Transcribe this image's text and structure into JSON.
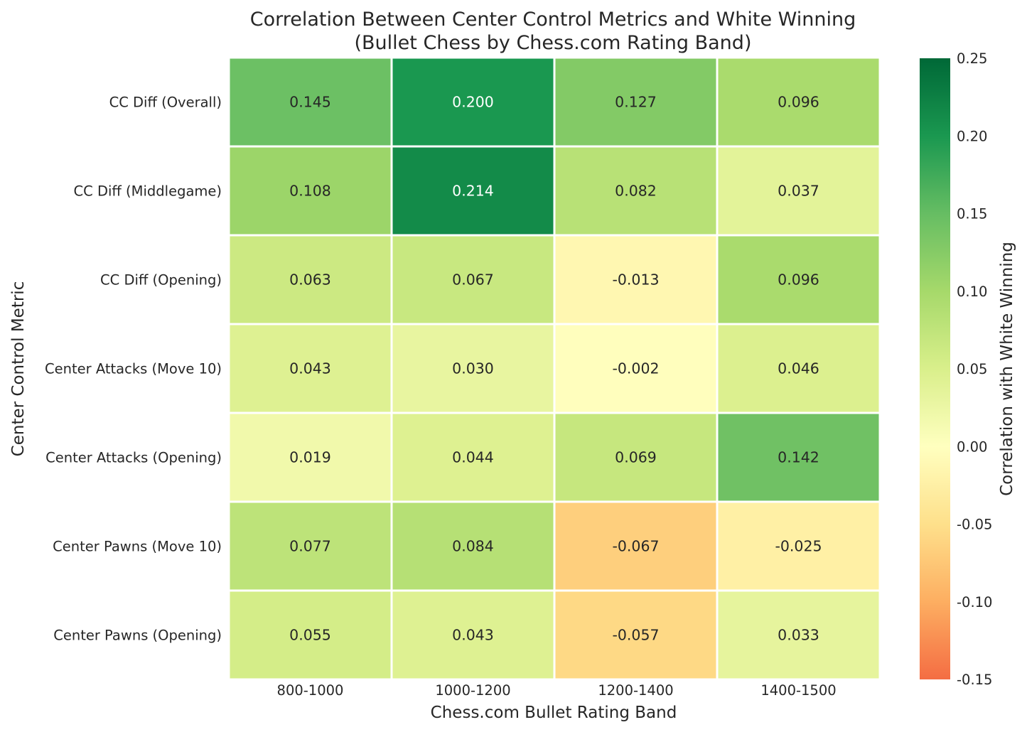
{
  "chart_data": {
    "type": "heatmap",
    "title": "Correlation Between Center Control Metrics and White Winning",
    "subtitle": "(Bullet Chess by Chess.com Rating Band)",
    "xlabel": "Chess.com Bullet Rating Band",
    "ylabel": "Center Control Metric",
    "colorbar_label": "Correlation with White Winning",
    "colormap": "RdYlGn",
    "vmin": -0.15,
    "vmax": 0.25,
    "colorbar_ticks": [
      "0.25",
      "0.20",
      "0.15",
      "0.10",
      "0.05",
      "0.00",
      "-0.05",
      "-0.10",
      "-0.15"
    ],
    "columns": [
      "800-1000",
      "1000-1200",
      "1200-1400",
      "1400-1500"
    ],
    "rows": [
      "CC Diff (Overall)",
      "CC Diff (Middlegame)",
      "CC Diff (Opening)",
      "Center Attacks (Move 10)",
      "Center Attacks (Opening)",
      "Center Pawns (Move 10)",
      "Center Pawns (Opening)"
    ],
    "values": [
      [
        0.145,
        0.2,
        0.127,
        0.096
      ],
      [
        0.108,
        0.214,
        0.082,
        0.037
      ],
      [
        0.063,
        0.067,
        -0.013,
        0.096
      ],
      [
        0.043,
        0.03,
        -0.002,
        0.046
      ],
      [
        0.019,
        0.044,
        0.069,
        0.142
      ],
      [
        0.077,
        0.084,
        -0.067,
        -0.025
      ],
      [
        0.055,
        0.043,
        -0.057,
        0.033
      ]
    ],
    "value_labels": [
      [
        "0.145",
        "0.200",
        "0.127",
        "0.096"
      ],
      [
        "0.108",
        "0.214",
        "0.082",
        "0.037"
      ],
      [
        "0.063",
        "0.067",
        "-0.013",
        "0.096"
      ],
      [
        "0.043",
        "0.030",
        "-0.002",
        "0.046"
      ],
      [
        "0.019",
        "0.044",
        "0.069",
        "0.142"
      ],
      [
        "0.077",
        "0.084",
        "-0.067",
        "-0.025"
      ],
      [
        "0.055",
        "0.043",
        "-0.057",
        "0.033"
      ]
    ]
  }
}
